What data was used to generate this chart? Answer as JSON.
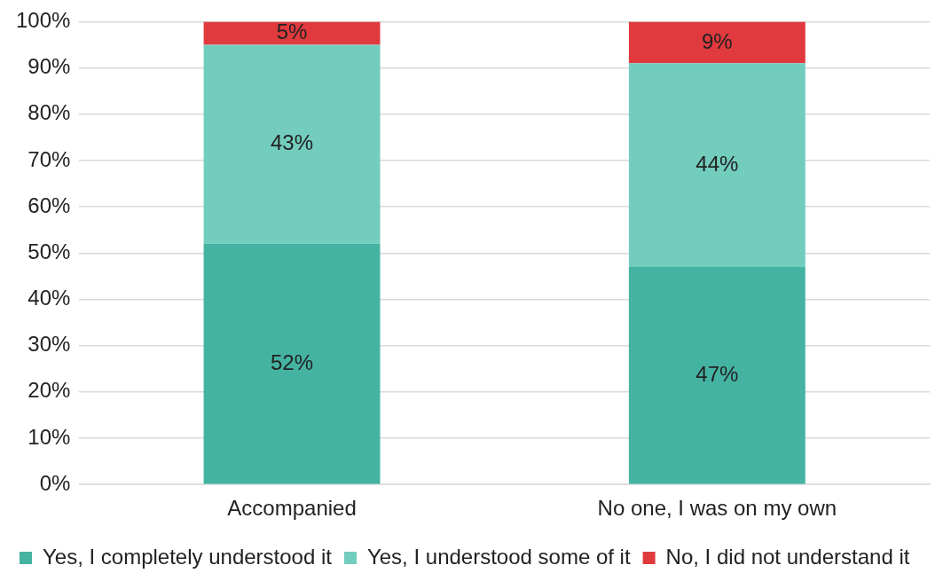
{
  "chart_data": {
    "type": "bar",
    "stacked": true,
    "categories": [
      "Accompanied",
      "No one, I was on my own"
    ],
    "series": [
      {
        "name": "Yes, I completely understood it",
        "color": "#45b3a2",
        "values": [
          52,
          47
        ],
        "value_labels": [
          "52%",
          "47%"
        ]
      },
      {
        "name": "Yes, I understood some of it",
        "color": "#73cdbd",
        "values": [
          43,
          44
        ],
        "value_labels": [
          "43%",
          "44%"
        ]
      },
      {
        "name": "No, I did not understand it",
        "color": "#e03a3e",
        "values": [
          5,
          9
        ],
        "value_labels": [
          "5%",
          "9%"
        ]
      }
    ],
    "ylim": [
      0,
      100
    ],
    "yticks": [
      {
        "value": 0,
        "label": "0%"
      },
      {
        "value": 10,
        "label": "10%"
      },
      {
        "value": 20,
        "label": "20%"
      },
      {
        "value": 30,
        "label": "30%"
      },
      {
        "value": 40,
        "label": "40%"
      },
      {
        "value": 50,
        "label": "50%"
      },
      {
        "value": 60,
        "label": "60%"
      },
      {
        "value": 70,
        "label": "70%"
      },
      {
        "value": 80,
        "label": "80%"
      },
      {
        "value": 90,
        "label": "90%"
      },
      {
        "value": 100,
        "label": "100%"
      }
    ],
    "grid": "y",
    "legend": "bottom"
  }
}
